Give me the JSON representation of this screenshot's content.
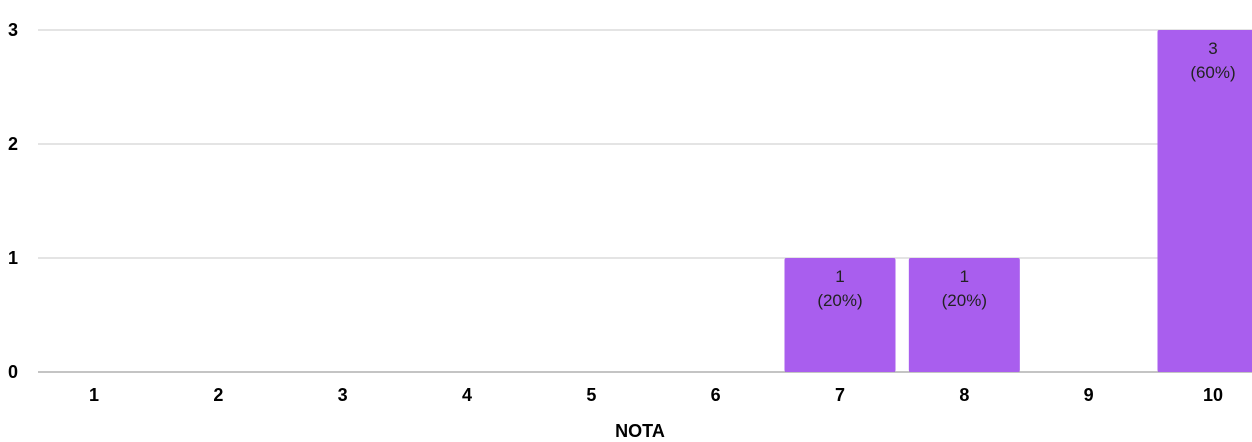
{
  "chart_data": {
    "type": "bar",
    "categories": [
      "1",
      "2",
      "3",
      "4",
      "5",
      "6",
      "7",
      "8",
      "9",
      "10"
    ],
    "values": [
      0,
      0,
      0,
      0,
      0,
      0,
      1,
      1,
      0,
      3
    ],
    "data_labels": [
      null,
      null,
      null,
      null,
      null,
      null,
      [
        "1",
        "(20%)"
      ],
      [
        "1",
        "(20%)"
      ],
      null,
      [
        "3",
        "(60%)"
      ]
    ],
    "xlabel": "NOTA",
    "ylabel": "",
    "ylim": [
      0,
      3
    ],
    "yticks": [
      "0",
      "1",
      "2",
      "3"
    ],
    "grid": true,
    "bar_color": "#a95eee"
  }
}
